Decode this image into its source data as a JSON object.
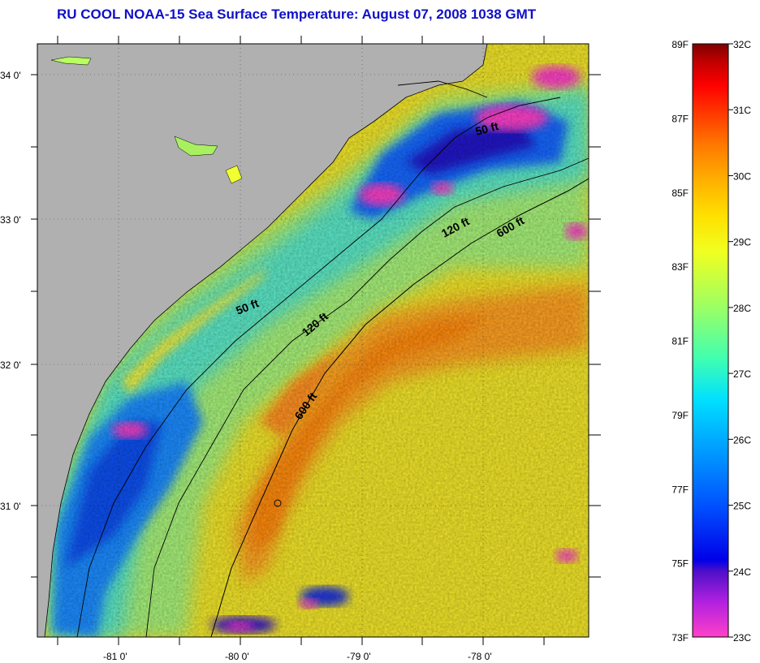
{
  "title": "RU COOL  NOAA-15  Sea Surface Temperature:  August 07, 2008 1038 GMT",
  "map": {
    "lat_labels": [
      "34 0'",
      "33 0'",
      "32 0'",
      "31 0'"
    ],
    "lon_labels": [
      "-81 0'",
      "-80 0'",
      "-79 0'",
      "-78 0'"
    ],
    "contours": [
      {
        "label": "50 ft"
      },
      {
        "label": "50 ft"
      },
      {
        "label": "120 ft"
      },
      {
        "label": "120 ft"
      },
      {
        "label": "600 ft"
      },
      {
        "label": "600 ft"
      }
    ]
  },
  "colorbar": {
    "fahrenheit": [
      "89F",
      "87F",
      "85F",
      "83F",
      "81F",
      "79F",
      "77F",
      "75F",
      "73F"
    ],
    "celsius": [
      "32C",
      "31C",
      "30C",
      "29C",
      "28C",
      "27C",
      "26C",
      "25C",
      "24C",
      "23C"
    ],
    "colors": [
      "#ff40c8",
      "#b020e0",
      "#5010c8",
      "#0000e8",
      "#0050ff",
      "#00a0ff",
      "#00e0ff",
      "#40ffb0",
      "#a0ff60",
      "#f0ff20",
      "#ffe000",
      "#ffb000",
      "#ff7800",
      "#ff3000",
      "#ff0000",
      "#c00000",
      "#800000"
    ]
  }
}
